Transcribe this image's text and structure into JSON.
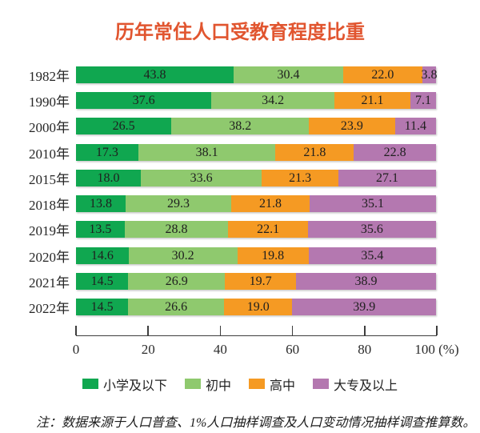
{
  "chart_data": {
    "type": "bar",
    "orientation": "horizontal-stacked",
    "title": "历年常住人口受教育程度比重",
    "title_color": "#e1552f",
    "categories": [
      "1982年",
      "1990年",
      "2000年",
      "2010年",
      "2015年",
      "2018年",
      "2019年",
      "2020年",
      "2021年",
      "2022年"
    ],
    "series": [
      {
        "name": "小学及以下",
        "color": "#10a750",
        "values": [
          43.8,
          37.6,
          26.5,
          17.3,
          18.0,
          13.8,
          13.5,
          14.6,
          14.5,
          14.5
        ]
      },
      {
        "name": "初中",
        "color": "#8fc96e",
        "values": [
          30.4,
          34.2,
          38.2,
          38.1,
          33.6,
          29.3,
          28.8,
          30.2,
          26.9,
          26.6
        ]
      },
      {
        "name": "高中",
        "color": "#f59a23",
        "values": [
          22.0,
          21.1,
          23.9,
          21.8,
          21.3,
          21.8,
          22.1,
          19.8,
          19.7,
          19.0
        ]
      },
      {
        "name": "大专及以上",
        "color": "#b478b0",
        "values": [
          3.8,
          7.1,
          11.4,
          22.8,
          27.1,
          35.1,
          35.6,
          35.4,
          38.9,
          39.9
        ]
      }
    ],
    "xlim": [
      0,
      100
    ],
    "x_tick_values": [
      0,
      20,
      40,
      60,
      80,
      100
    ],
    "x_tick_labels": [
      "0",
      "20",
      "40",
      "60",
      "80",
      "100 (%)"
    ],
    "grid": false,
    "legend_position": "bottom",
    "note": "注：数据来源于人口普查、1%人口抽样调查及人口变动情况抽样调查推算数。"
  }
}
